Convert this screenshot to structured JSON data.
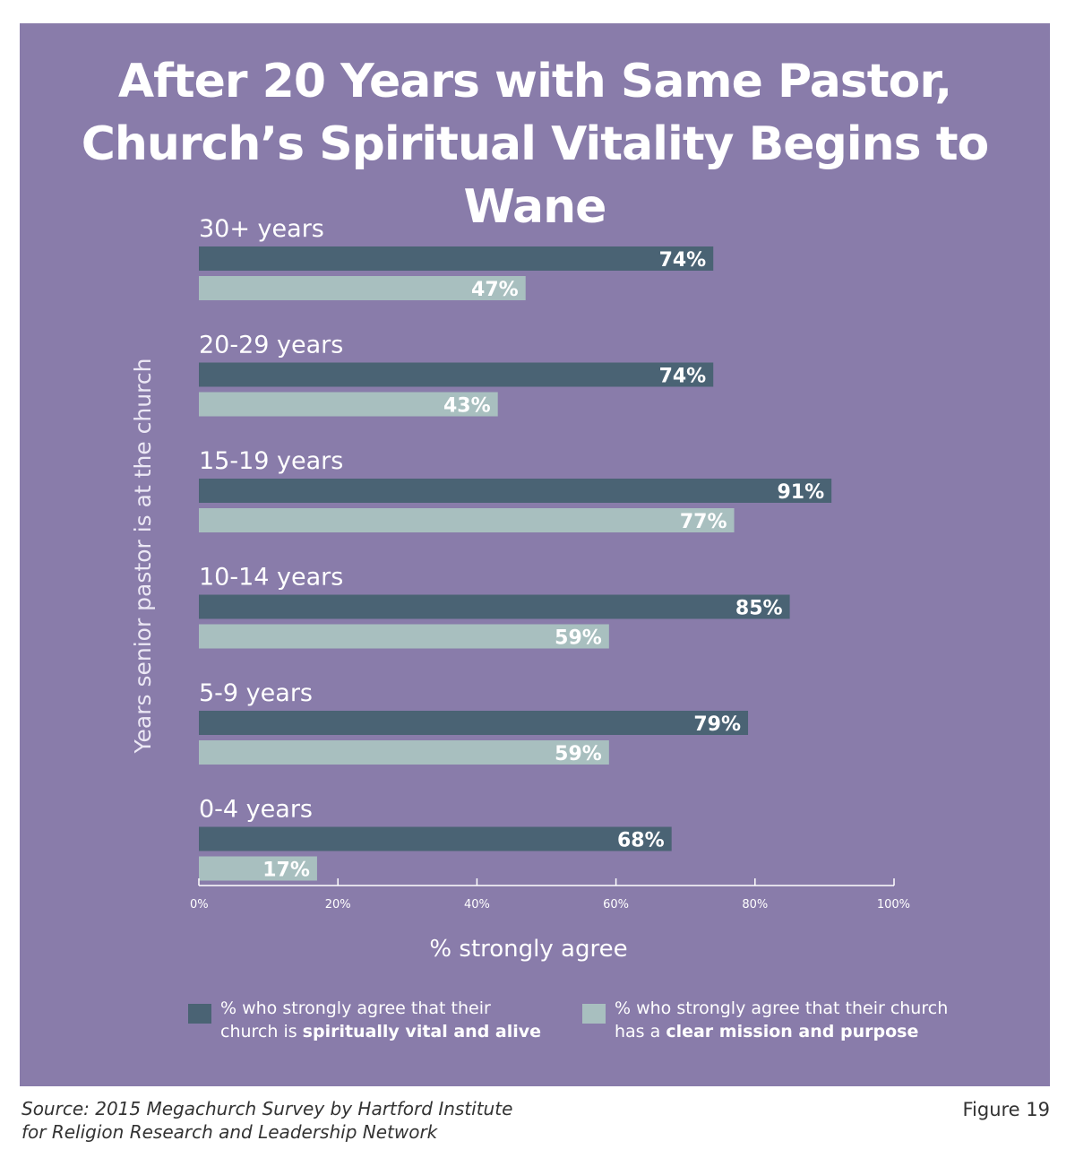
{
  "colors": {
    "panel": "#897caa",
    "vital": "#4a6374",
    "mission": "#a8bfbf"
  },
  "chart_data": {
    "type": "bar",
    "orientation": "horizontal",
    "title": "After 20 Years with Same Pastor, Church’s Spiritual Vitality Begins to Wane",
    "title_lines": [
      "After 20 Years with Same Pastor,",
      "Church’s Spiritual Vitality Begins to Wane"
    ],
    "ylabel": "Years senior pastor is at the church",
    "xlabel": "% strongly agree",
    "xlim": [
      0,
      100
    ],
    "x_ticks": [
      "0%",
      "20%",
      "40%",
      "60%",
      "80%",
      "100%"
    ],
    "categories": [
      "30+ years",
      "20-29 years",
      "15-19 years",
      "10-14 years",
      "5-9 years",
      "0-4 years"
    ],
    "series": [
      {
        "name": "% who strongly agree that their church is spiritually vital and alive",
        "color": "#4a6374",
        "values": [
          74,
          74,
          91,
          85,
          79,
          68
        ],
        "labels": [
          "74%",
          "74%",
          "91%",
          "85%",
          "79%",
          "68%"
        ]
      },
      {
        "name": "% who strongly agree that their church has a clear mission and purpose",
        "color": "#a8bfbf",
        "values": [
          47,
          43,
          77,
          59,
          59,
          17
        ],
        "labels": [
          "47%",
          "43%",
          "77%",
          "59%",
          "59%",
          "17%"
        ]
      }
    ],
    "legend_placement": "bottom"
  },
  "legend": {
    "vital_line1": "% who strongly agree that their",
    "vital_line2_plain": "church is ",
    "vital_line2_bold": "spiritually vital and alive",
    "mission_line1": "% who strongly agree that their church",
    "mission_line2_plain": "has a ",
    "mission_line2_bold": "clear mission and purpose"
  },
  "source_line1": "Source: 2015 Megachurch Survey by Hartford Institute",
  "source_line2": "for Religion Research and Leadership Network",
  "figure_label": "Figure 19"
}
